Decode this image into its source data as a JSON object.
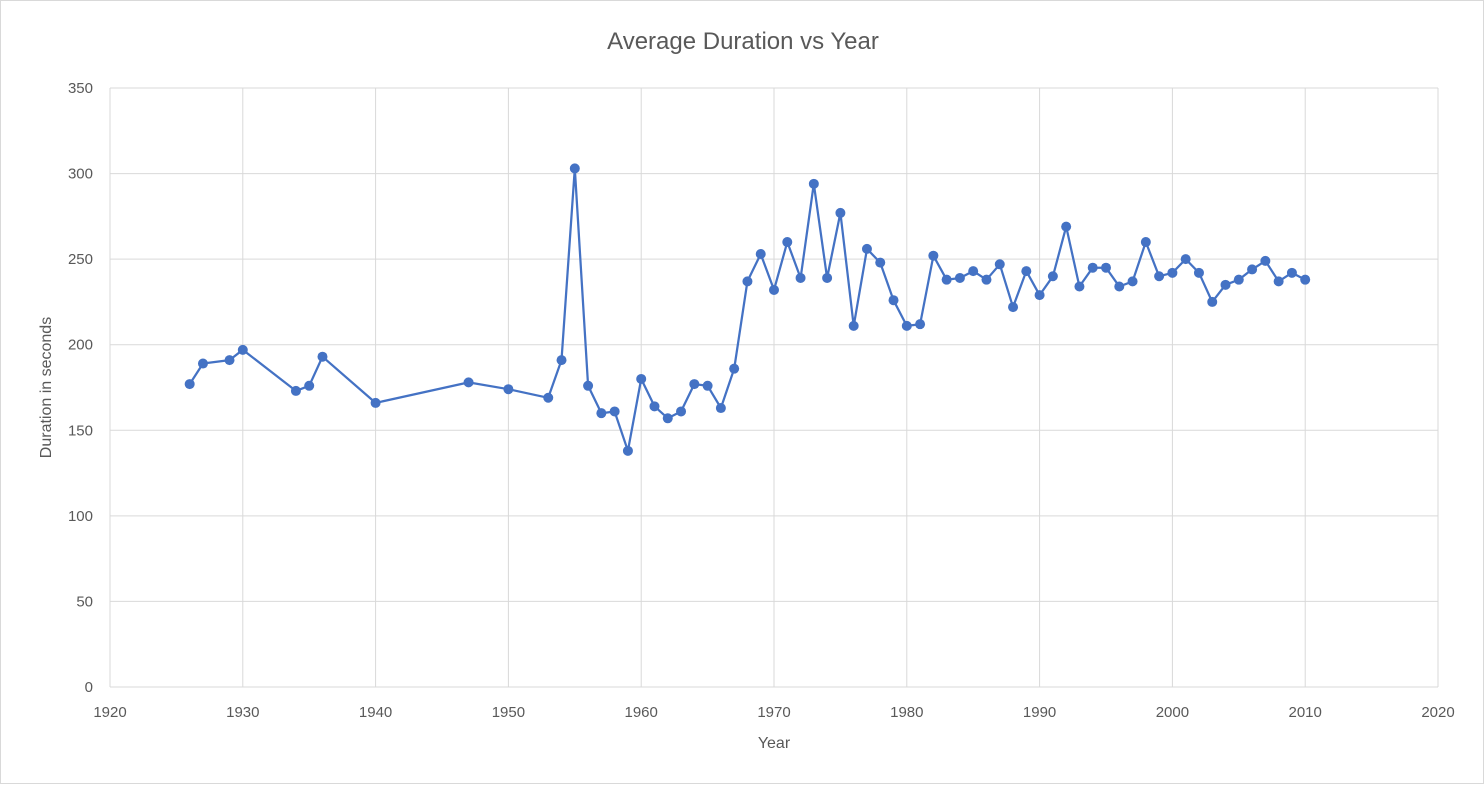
{
  "chart_data": {
    "type": "line",
    "title": "Average Duration vs Year",
    "xlabel": "Year",
    "ylabel": "Duration in seconds",
    "xlim": [
      1920,
      2020
    ],
    "ylim": [
      0,
      350
    ],
    "x_ticks": [
      1920,
      1930,
      1940,
      1950,
      1960,
      1970,
      1980,
      1990,
      2000,
      2010,
      2020
    ],
    "y_ticks": [
      0,
      50,
      100,
      150,
      200,
      250,
      300,
      350
    ],
    "grid": true,
    "legend": "none",
    "series_color": "#4472c4",
    "series": [
      {
        "x": [
          1926,
          1927,
          1929,
          1930,
          1934,
          1935,
          1936,
          1940,
          1947,
          1950,
          1953,
          1954,
          1955,
          1956,
          1957,
          1958,
          1959,
          1960,
          1961,
          1962,
          1963,
          1964,
          1965,
          1966,
          1967,
          1968,
          1969,
          1970,
          1971,
          1972,
          1973,
          1974,
          1975,
          1976,
          1977,
          1978,
          1979,
          1980,
          1981,
          1982,
          1983,
          1984,
          1985,
          1986,
          1987,
          1988,
          1989,
          1990,
          1991,
          1992,
          1993,
          1994,
          1995,
          1996,
          1997,
          1998,
          1999,
          2000,
          2001,
          2002,
          2003,
          2004,
          2005,
          2006,
          2007,
          2008,
          2009,
          2010
        ],
        "y": [
          177,
          189,
          191,
          197,
          173,
          176,
          193,
          166,
          178,
          174,
          169,
          191,
          303,
          176,
          160,
          161,
          138,
          180,
          164,
          157,
          161,
          177,
          176,
          163,
          186,
          237,
          253,
          232,
          260,
          239,
          294,
          239,
          277,
          211,
          256,
          248,
          226,
          211,
          212,
          252,
          238,
          239,
          243,
          238,
          247,
          222,
          243,
          229,
          240,
          269,
          234,
          245,
          245,
          234,
          237,
          260,
          240,
          242,
          250,
          242,
          225,
          235,
          238,
          244,
          249,
          237,
          242,
          238
        ]
      }
    ]
  }
}
